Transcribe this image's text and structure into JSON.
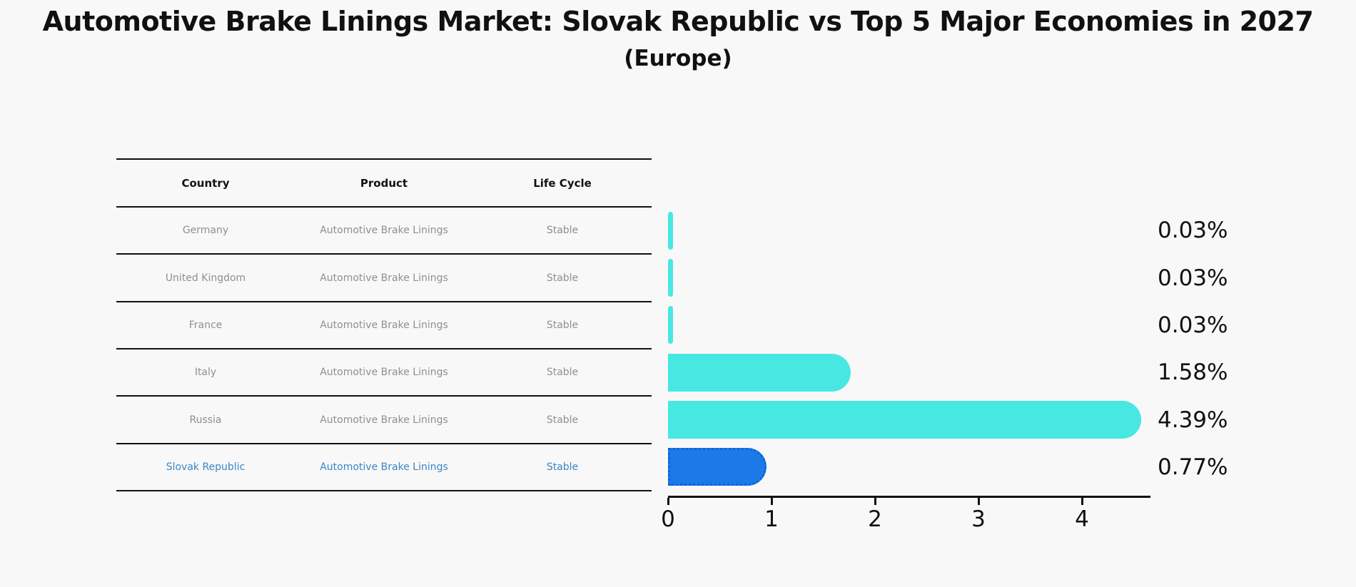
{
  "title": "Automotive Brake Linings Market: Slovak Republic vs Top 5 Major Economies in 2027",
  "subtitle": "(Europe)",
  "table": {
    "headers": [
      "Country",
      "Product",
      "Life Cycle"
    ]
  },
  "chart_data": {
    "type": "bar",
    "orientation": "horizontal",
    "title": "Automotive Brake Linings Market: Slovak Republic vs Top 5 Major Economies in 2027",
    "subtitle": "(Europe)",
    "categories": [
      "Germany",
      "United Kingdom",
      "France",
      "Italy",
      "Russia",
      "Slovak Republic"
    ],
    "values": [
      0.03,
      0.03,
      0.03,
      1.58,
      4.39,
      0.77
    ],
    "value_labels": [
      "0.03%",
      "0.03%",
      "0.03%",
      "1.58%",
      "4.39%",
      "0.77%"
    ],
    "x_ticks": [
      0,
      1,
      2,
      3,
      4
    ],
    "xlim": [
      0,
      4.66
    ],
    "grid": false,
    "legend": "none",
    "rows": [
      {
        "country": "Germany",
        "product": "Automotive Brake Linings",
        "life_cycle": "Stable",
        "value": 0.03,
        "label": "0.03%",
        "highlight": false
      },
      {
        "country": "United Kingdom",
        "product": "Automotive Brake Linings",
        "life_cycle": "Stable",
        "value": 0.03,
        "label": "0.03%",
        "highlight": false
      },
      {
        "country": "France",
        "product": "Automotive Brake Linings",
        "life_cycle": "Stable",
        "value": 0.03,
        "label": "0.03%",
        "highlight": false
      },
      {
        "country": "Italy",
        "product": "Automotive Brake Linings",
        "life_cycle": "Stable",
        "value": 1.58,
        "label": "1.58%",
        "highlight": false
      },
      {
        "country": "Russia",
        "product": "Automotive Brake Linings",
        "life_cycle": "Stable",
        "value": 4.39,
        "label": "4.39%",
        "highlight": false
      },
      {
        "country": "Slovak Republic",
        "product": "Automotive Brake Linings",
        "life_cycle": "Stable",
        "value": 0.77,
        "label": "0.77%",
        "highlight": true
      }
    ]
  },
  "colors": {
    "bar": "#48E8E2",
    "highlight_bar": "#1B7AE8",
    "highlight_border": "#0F62D6",
    "highlight_text": "#3A86C8",
    "cell_text": "#8F8F8F",
    "ink": "#111111",
    "background": "#F8F8F8"
  }
}
